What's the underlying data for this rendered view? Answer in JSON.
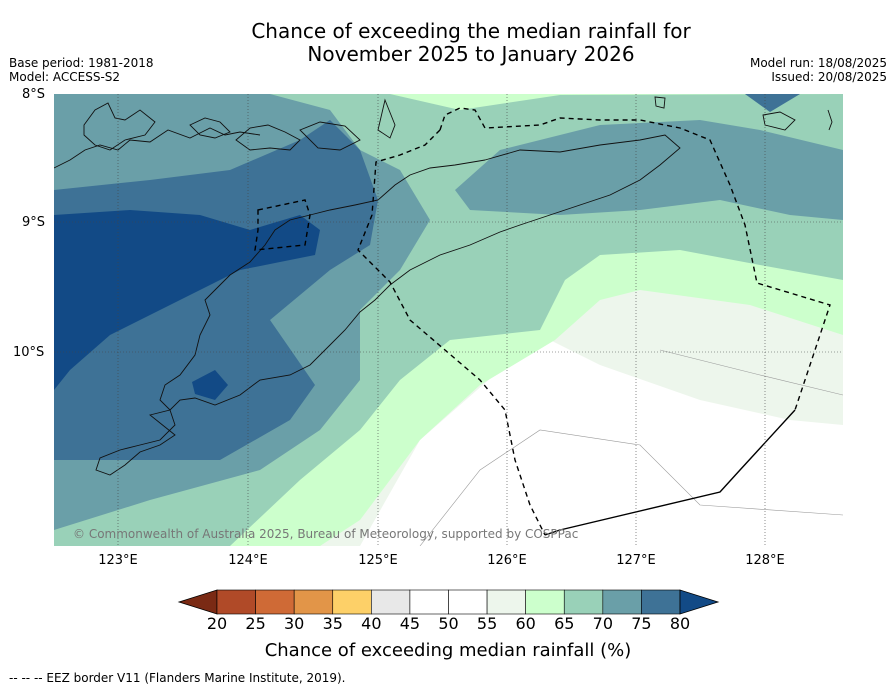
{
  "title_line1": "Chance of exceeding the median rainfall for",
  "title_line2": "November 2025 to January 2026",
  "meta_left": [
    "Base period: 1981-2018",
    "Model: ACCESS-S2"
  ],
  "meta_right": [
    "Model run: 18/08/2025",
    "Issued: 20/08/2025"
  ],
  "map": {
    "lat_labels": [
      "8°S",
      "9°S",
      "10°S"
    ],
    "lon_labels": [
      "123°E",
      "124°E",
      "125°E",
      "126°E",
      "127°E",
      "128°E"
    ],
    "copyright": "© Commonwealth of Australia 2025, Bureau of Meteorology, supported by COSPPac"
  },
  "colorbar": {
    "ticks": [
      "20",
      "25",
      "30",
      "35",
      "40",
      "45",
      "50",
      "55",
      "60",
      "65",
      "70",
      "75",
      "80"
    ],
    "colors": [
      "#7a2a14",
      "#b04a28",
      "#cf6a36",
      "#e29548",
      "#fdd068",
      "#e8e8e8",
      "#ffffff",
      "#ffffff",
      "#edf6ec",
      "#ccffcc",
      "#99d1b8",
      "#6a9fa8",
      "#3e7296",
      "#124a86"
    ],
    "title": "Chance of exceeding median rainfall (%)"
  },
  "footnote": "--  --  -- EEZ border V11 (Flanders Marine Institute, 2019)."
}
